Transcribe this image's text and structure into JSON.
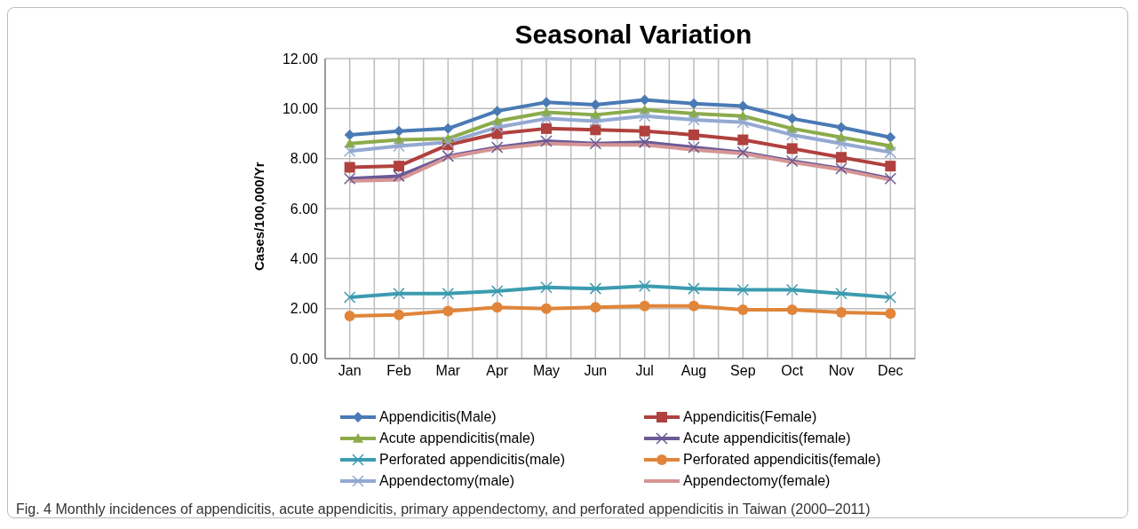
{
  "chart_data": {
    "type": "line",
    "title": "Seasonal Variation",
    "ylabel": "Cases/100,000/Yr",
    "categories": [
      "Jan",
      "Feb",
      "Mar",
      "Apr",
      "May",
      "Jun",
      "Jul",
      "Aug",
      "Sep",
      "Oct",
      "Nov",
      "Dec"
    ],
    "ylim": [
      0,
      12
    ],
    "yticks": [
      {
        "value": 0,
        "label": "0.00"
      },
      {
        "value": 2,
        "label": "2.00"
      },
      {
        "value": 4,
        "label": "4.00"
      },
      {
        "value": 6,
        "label": "6.00"
      },
      {
        "value": 8,
        "label": "8.00"
      },
      {
        "value": 10,
        "label": "10.00"
      },
      {
        "value": 12,
        "label": "12.00"
      }
    ],
    "grid": true,
    "legend": "bottom",
    "line_style": "solid",
    "series": [
      {
        "name": "Appendicitis(Male)",
        "color": "#4a7ab5",
        "marker": "diamond",
        "values": [
          8.95,
          9.1,
          9.2,
          9.9,
          10.25,
          10.15,
          10.35,
          10.2,
          10.1,
          9.6,
          9.25,
          8.85
        ]
      },
      {
        "name": "Appendicitis(Female)",
        "color": "#b0413e",
        "marker": "square",
        "values": [
          7.65,
          7.7,
          8.55,
          9.0,
          9.2,
          9.15,
          9.1,
          8.95,
          8.75,
          8.4,
          8.05,
          7.7
        ]
      },
      {
        "name": "Acute appendicitis(male)",
        "color": "#8bab4a",
        "marker": "triangle",
        "values": [
          8.6,
          8.75,
          8.8,
          9.5,
          9.85,
          9.75,
          9.95,
          9.8,
          9.7,
          9.2,
          8.85,
          8.5
        ]
      },
      {
        "name": "Acute appendicitis(female)",
        "color": "#6b5a96",
        "marker": "cross",
        "values": [
          7.2,
          7.3,
          8.1,
          8.45,
          8.7,
          8.6,
          8.65,
          8.45,
          8.25,
          7.9,
          7.6,
          7.2
        ]
      },
      {
        "name": "Perforated appendicitis(male)",
        "color": "#3c9bb0",
        "marker": "cross",
        "values": [
          2.45,
          2.6,
          2.6,
          2.7,
          2.85,
          2.8,
          2.9,
          2.8,
          2.75,
          2.75,
          2.6,
          2.45
        ]
      },
      {
        "name": "Perforated appendicitis(female)",
        "color": "#e0853a",
        "marker": "circle",
        "values": [
          1.7,
          1.75,
          1.9,
          2.05,
          2.0,
          2.05,
          2.1,
          2.1,
          1.95,
          1.95,
          1.85,
          1.8
        ]
      },
      {
        "name": "Appendectomy(male)",
        "color": "#93a9d2",
        "marker": "cross",
        "values": [
          8.3,
          8.5,
          8.65,
          9.25,
          9.6,
          9.5,
          9.7,
          9.55,
          9.45,
          8.95,
          8.6,
          8.25
        ]
      },
      {
        "name": "Appendectomy(female)",
        "color": "#d69594",
        "marker": "none",
        "values": [
          7.1,
          7.15,
          8.05,
          8.4,
          8.6,
          8.55,
          8.55,
          8.35,
          8.2,
          7.85,
          7.55,
          7.15
        ]
      }
    ],
    "annotations": [
      "Fig. 4 Monthly incidences of appendicitis, acute appendicitis, primary appendectomy, and perforated appendicitis in Taiwan (2000–2011)"
    ]
  }
}
